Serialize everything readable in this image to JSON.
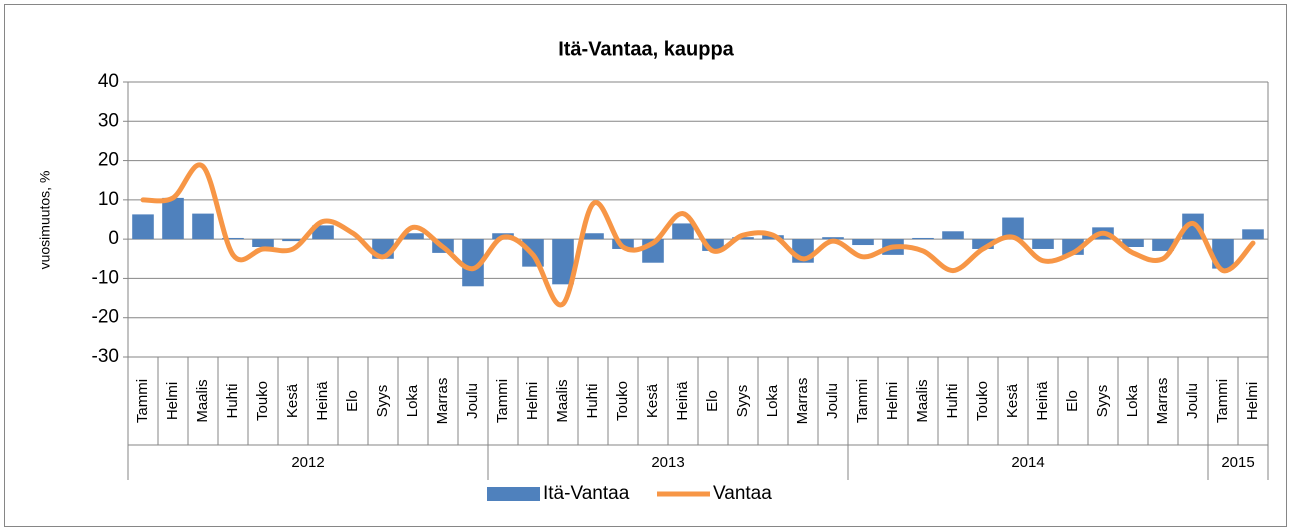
{
  "chart_data": {
    "type": "bar-line",
    "title": "Itä-Vantaa, kauppa",
    "y_label": "vuosimuutos, %",
    "categories": [
      "Tammi",
      "Helmi",
      "Maalis",
      "Huhti",
      "Touko",
      "Kesä",
      "Heinä",
      "Elo",
      "Syys",
      "Loka",
      "Marras",
      "Joulu",
      "Tammi",
      "Helmi",
      "Maalis",
      "Huhti",
      "Touko",
      "Kesä",
      "Heinä",
      "Elo",
      "Syys",
      "Loka",
      "Marras",
      "Joulu",
      "Tammi",
      "Helmi",
      "Maalis",
      "Huhti",
      "Touko",
      "Kesä",
      "Heinä",
      "Elo",
      "Syys",
      "Loka",
      "Marras",
      "Joulu",
      "Tammi",
      "Helmi"
    ],
    "category_groups": [
      "2012",
      "2012",
      "2012",
      "2012",
      "2012",
      "2012",
      "2012",
      "2012",
      "2012",
      "2012",
      "2012",
      "2012",
      "2013",
      "2013",
      "2013",
      "2013",
      "2013",
      "2013",
      "2013",
      "2013",
      "2013",
      "2013",
      "2013",
      "2013",
      "2014",
      "2014",
      "2014",
      "2014",
      "2014",
      "2014",
      "2014",
      "2014",
      "2014",
      "2014",
      "2014",
      "2014",
      "2015",
      "2015"
    ],
    "series": [
      {
        "name": "Itä-Vantaa",
        "kind": "bar",
        "color": "#4f81bd",
        "values": [
          6.3,
          10.5,
          6.5,
          0.3,
          -2,
          -0.5,
          3.5,
          0,
          -5,
          1.5,
          -3.5,
          -12,
          1.5,
          -7,
          -11.5,
          1.5,
          -2.5,
          -6,
          4,
          -3,
          0.5,
          1,
          -6,
          0.5,
          -1.5,
          -4,
          0.3,
          2,
          -2.5,
          5.5,
          -2.5,
          -4,
          3,
          -2,
          -3,
          6.5,
          -7.5,
          2.5
        ]
      },
      {
        "name": "Vantaa",
        "kind": "line",
        "color": "#f79646",
        "values": [
          10,
          10.5,
          18.5,
          -4,
          -2.5,
          -2.5,
          4.5,
          1.5,
          -4.5,
          3,
          -2,
          -7.5,
          0.5,
          -4,
          -16.5,
          9,
          -2,
          -1,
          6.5,
          -3,
          1,
          1,
          -5,
          -0.5,
          -4.5,
          -2,
          -3,
          -8,
          -2.5,
          0.5,
          -5.5,
          -3.5,
          1.5,
          -3.5,
          -5,
          4,
          -8,
          -1
        ]
      }
    ],
    "ylim": [
      -30,
      40
    ],
    "yticks": [
      -30,
      -20,
      -10,
      0,
      10,
      20,
      30,
      40
    ],
    "negative_tick_color": "#ff0000",
    "grid": true,
    "legend": "bottom"
  }
}
